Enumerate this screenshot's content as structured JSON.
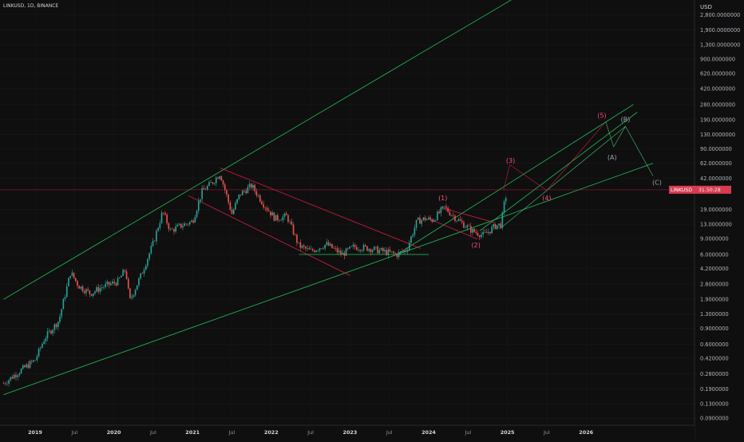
{
  "header": {
    "symbol_label": "LINKUSD, 1D, BINANCE"
  },
  "chart_data": {
    "type": "candlestick",
    "title": "LINKUSD, 1D, BINANCE",
    "y_scale": "log",
    "currency": "USD",
    "y_ticks": [
      {
        "label": "2,800.0000000",
        "value": 2800
      },
      {
        "label": "1,900.0000000",
        "value": 1900
      },
      {
        "label": "1,300.0000000",
        "value": 1300
      },
      {
        "label": "900.0000000",
        "value": 900
      },
      {
        "label": "620.0000000",
        "value": 620
      },
      {
        "label": "420.0000000",
        "value": 420
      },
      {
        "label": "280.0000000",
        "value": 280
      },
      {
        "label": "190.0000000",
        "value": 190
      },
      {
        "label": "130.0000000",
        "value": 130
      },
      {
        "label": "90.0000000",
        "value": 90
      },
      {
        "label": "62.0000000",
        "value": 62
      },
      {
        "label": "42.0000000",
        "value": 42
      },
      {
        "label": "19.0000000",
        "value": 19
      },
      {
        "label": "13.0000000",
        "value": 13
      },
      {
        "label": "9.0000000",
        "value": 9
      },
      {
        "label": "6.0000000",
        "value": 6
      },
      {
        "label": "4.2000000",
        "value": 4.2
      },
      {
        "label": "2.8000000",
        "value": 2.8
      },
      {
        "label": "1.9000000",
        "value": 1.9
      },
      {
        "label": "1.3000000",
        "value": 1.3
      },
      {
        "label": "0.9000000",
        "value": 0.9
      },
      {
        "label": "0.6000000",
        "value": 0.6
      },
      {
        "label": "0.4200000",
        "value": 0.42
      },
      {
        "label": "0.2800000",
        "value": 0.28
      },
      {
        "label": "0.1900000",
        "value": 0.19
      },
      {
        "label": "0.1300000",
        "value": 0.13
      },
      {
        "label": "0.0900000",
        "value": 0.09
      }
    ],
    "x_ticks": [
      {
        "label": "2019",
        "date": 2019.0,
        "bold": true
      },
      {
        "label": "Jul",
        "date": 2019.5,
        "bold": false
      },
      {
        "label": "2020",
        "date": 2020.0,
        "bold": true
      },
      {
        "label": "Jul",
        "date": 2020.5,
        "bold": false
      },
      {
        "label": "2021",
        "date": 2021.0,
        "bold": true
      },
      {
        "label": "Jul",
        "date": 2021.5,
        "bold": false
      },
      {
        "label": "2022",
        "date": 2022.0,
        "bold": true
      },
      {
        "label": "Jul",
        "date": 2022.5,
        "bold": false
      },
      {
        "label": "2023",
        "date": 2023.0,
        "bold": true
      },
      {
        "label": "Jul",
        "date": 2023.5,
        "bold": false
      },
      {
        "label": "2024",
        "date": 2024.0,
        "bold": true
      },
      {
        "label": "Jul",
        "date": 2024.5,
        "bold": false
      },
      {
        "label": "2025",
        "date": 2025.0,
        "bold": true
      },
      {
        "label": "Jul",
        "date": 2025.5,
        "bold": false
      },
      {
        "label": "2026",
        "date": 2026.0,
        "bold": true
      }
    ],
    "last_price": {
      "symbol": "LINKUSD",
      "value": 31.5,
      "label": "31.50:28"
    },
    "price_path": [
      {
        "date": 2018.6,
        "price": 0.22
      },
      {
        "date": 2018.8,
        "price": 0.3
      },
      {
        "date": 2019.0,
        "price": 0.4
      },
      {
        "date": 2019.12,
        "price": 0.7
      },
      {
        "date": 2019.3,
        "price": 1.1
      },
      {
        "date": 2019.45,
        "price": 3.8
      },
      {
        "date": 2019.55,
        "price": 2.7
      },
      {
        "date": 2019.7,
        "price": 2.2
      },
      {
        "date": 2019.85,
        "price": 2.6
      },
      {
        "date": 2020.05,
        "price": 3.0
      },
      {
        "date": 2020.15,
        "price": 4.1
      },
      {
        "date": 2020.2,
        "price": 1.8
      },
      {
        "date": 2020.35,
        "price": 3.6
      },
      {
        "date": 2020.5,
        "price": 8.0
      },
      {
        "date": 2020.62,
        "price": 18.0
      },
      {
        "date": 2020.72,
        "price": 11.0
      },
      {
        "date": 2020.85,
        "price": 12.5
      },
      {
        "date": 2021.0,
        "price": 14.0
      },
      {
        "date": 2021.12,
        "price": 30.0
      },
      {
        "date": 2021.25,
        "price": 38.0
      },
      {
        "date": 2021.35,
        "price": 48.0
      },
      {
        "date": 2021.5,
        "price": 17.0
      },
      {
        "date": 2021.6,
        "price": 28.0
      },
      {
        "date": 2021.75,
        "price": 35.0
      },
      {
        "date": 2021.9,
        "price": 22.0
      },
      {
        "date": 2022.05,
        "price": 15.0
      },
      {
        "date": 2022.2,
        "price": 16.0
      },
      {
        "date": 2022.35,
        "price": 7.5
      },
      {
        "date": 2022.5,
        "price": 6.5
      },
      {
        "date": 2022.7,
        "price": 7.8
      },
      {
        "date": 2022.9,
        "price": 6.0
      },
      {
        "date": 2023.05,
        "price": 7.3
      },
      {
        "date": 2023.25,
        "price": 7.0
      },
      {
        "date": 2023.45,
        "price": 6.4
      },
      {
        "date": 2023.6,
        "price": 6.0
      },
      {
        "date": 2023.72,
        "price": 6.8
      },
      {
        "date": 2023.85,
        "price": 14.0
      },
      {
        "date": 2023.95,
        "price": 15.0
      },
      {
        "date": 2024.05,
        "price": 14.5
      },
      {
        "date": 2024.2,
        "price": 20.0
      },
      {
        "date": 2024.35,
        "price": 15.0
      },
      {
        "date": 2024.55,
        "price": 11.0
      },
      {
        "date": 2024.7,
        "price": 9.8
      },
      {
        "date": 2024.85,
        "price": 12.5
      },
      {
        "date": 2024.92,
        "price": 13.0
      },
      {
        "date": 2024.96,
        "price": 22.0
      },
      {
        "date": 2025.0,
        "price": 31.5
      }
    ],
    "trend_lines": [
      {
        "role": "outer-channel-top",
        "color": "#22c55e",
        "from": {
          "date": 2018.6,
          "price": 1.9
        },
        "to": {
          "date": 2025.8,
          "price": 10000
        }
      },
      {
        "role": "outer-channel-bottom",
        "color": "#22c55e",
        "from": {
          "date": 2018.6,
          "price": 0.165
        },
        "to": {
          "date": 2026.85,
          "price": 62
        }
      },
      {
        "role": "wave-channel-upper",
        "color": "#22c55e",
        "from": {
          "date": 2023.6,
          "price": 6.0
        },
        "to": {
          "date": 2026.6,
          "price": 280
        }
      },
      {
        "role": "wave-channel-lower",
        "color": "#22c55e",
        "from": {
          "date": 2024.65,
          "price": 11.0
        },
        "to": {
          "date": 2026.65,
          "price": 230
        }
      },
      {
        "role": "bear-channel-top",
        "color": "#e11d48",
        "from": {
          "date": 2021.35,
          "price": 55.0
        },
        "to": {
          "date": 2023.9,
          "price": 7.0
        }
      },
      {
        "role": "bear-channel-bottom",
        "color": "#e11d48",
        "from": {
          "date": 2020.95,
          "price": 27.0
        },
        "to": {
          "date": 2023.0,
          "price": 3.5
        }
      },
      {
        "role": "range-floor",
        "color": "#22c55e",
        "from": {
          "date": 2022.35,
          "price": 6.0
        },
        "to": {
          "date": 2024.0,
          "price": 6.0
        }
      },
      {
        "role": "flag-top",
        "color": "#e11d48",
        "from": {
          "date": 2024.15,
          "price": 20.0
        },
        "to": {
          "date": 2024.85,
          "price": 13.5
        }
      },
      {
        "role": "flag-bottom",
        "color": "#e11d48",
        "from": {
          "date": 2024.0,
          "price": 15.0
        },
        "to": {
          "date": 2024.62,
          "price": 8.9
        }
      }
    ],
    "wave_paths": [
      {
        "role": "impulse-count",
        "color": "#e11d48",
        "points": [
          {
            "date": 2024.95,
            "price": 31.0
          },
          {
            "date": 2025.03,
            "price": 60.0
          },
          {
            "date": 2025.5,
            "price": 31.0
          },
          {
            "date": 2026.25,
            "price": 180.0
          }
        ]
      },
      {
        "role": "correction-count",
        "color": "#4ade80",
        "points": [
          {
            "date": 2026.25,
            "price": 180.0
          },
          {
            "date": 2026.35,
            "price": 95.0
          },
          {
            "date": 2026.5,
            "price": 160.0
          },
          {
            "date": 2026.85,
            "price": 45.0
          }
        ]
      },
      {
        "role": "projection-from-low",
        "color": "#4ade80",
        "points": [
          {
            "date": 2024.9,
            "price": 11.5
          },
          {
            "date": 2026.5,
            "price": 160.0
          }
        ]
      }
    ],
    "wave_labels": [
      {
        "text": "(1)",
        "color": "#ff4d7d",
        "date": 2024.18,
        "price": 24.0
      },
      {
        "text": "(2)",
        "color": "#ff4d7d",
        "date": 2024.6,
        "price": 7.2
      },
      {
        "text": "(3)",
        "color": "#ff4d7d",
        "date": 2025.04,
        "price": 63.0
      },
      {
        "text": "(4)",
        "color": "#ff4d7d",
        "date": 2025.5,
        "price": 24.0
      },
      {
        "text": "(5)",
        "color": "#ff4d7d",
        "date": 2026.2,
        "price": 200.0
      },
      {
        "text": "(A)",
        "color": "#9ca3af",
        "date": 2026.33,
        "price": 68.0
      },
      {
        "text": "(B)",
        "color": "#9ca3af",
        "date": 2026.5,
        "price": 180.0
      },
      {
        "text": "(C)",
        "color": "#9ca3af",
        "date": 2026.9,
        "price": 36.0
      }
    ]
  }
}
